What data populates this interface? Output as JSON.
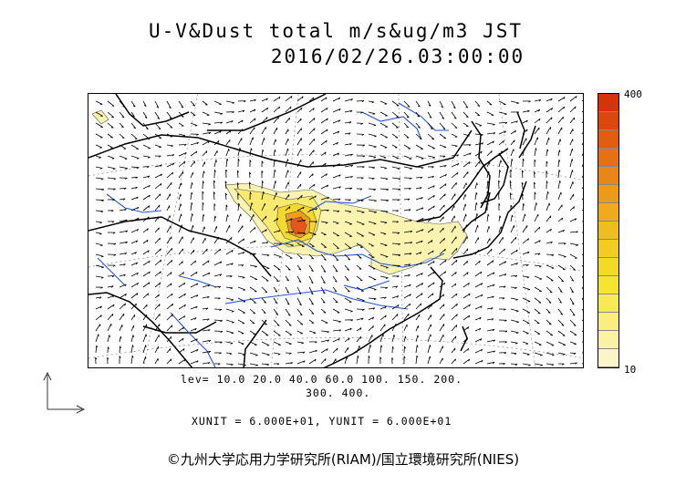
{
  "header": {
    "title_line1": "U-V&Dust total m/s&ug/m3 JST",
    "title_line2": "2016/02/26.03:00:00"
  },
  "colorbar": {
    "max_label": "400",
    "min_label": "10",
    "colors": [
      "#fbf6c9",
      "#fbf2a6",
      "#f9ee7e",
      "#f8ea55",
      "#f6e52f",
      "#f4da27",
      "#f2cc22",
      "#f0bd1f",
      "#eeac1c",
      "#eb9a19",
      "#e88617",
      "#e47214",
      "#e05d11",
      "#db480e",
      "#d5330b"
    ]
  },
  "legend": {
    "lev_line1": "lev= 10.0 20.0 40.0 60.0 100. 150. 200.",
    "lev_line2": "300. 400.",
    "units": "XUNIT = 6.000E+01, YUNIT = 6.000E+01"
  },
  "map": {
    "land_color": "#000000",
    "river_color": "#2255dd",
    "grid_color": "#888888",
    "dust_low": "#fbf3b0",
    "dust_mid": "#f6e23a",
    "dust_high": "#e4571a"
  },
  "footer": {
    "credit": "©九州大学応用力学研究所(RIAM)/国立環境研究所(NIES)"
  }
}
